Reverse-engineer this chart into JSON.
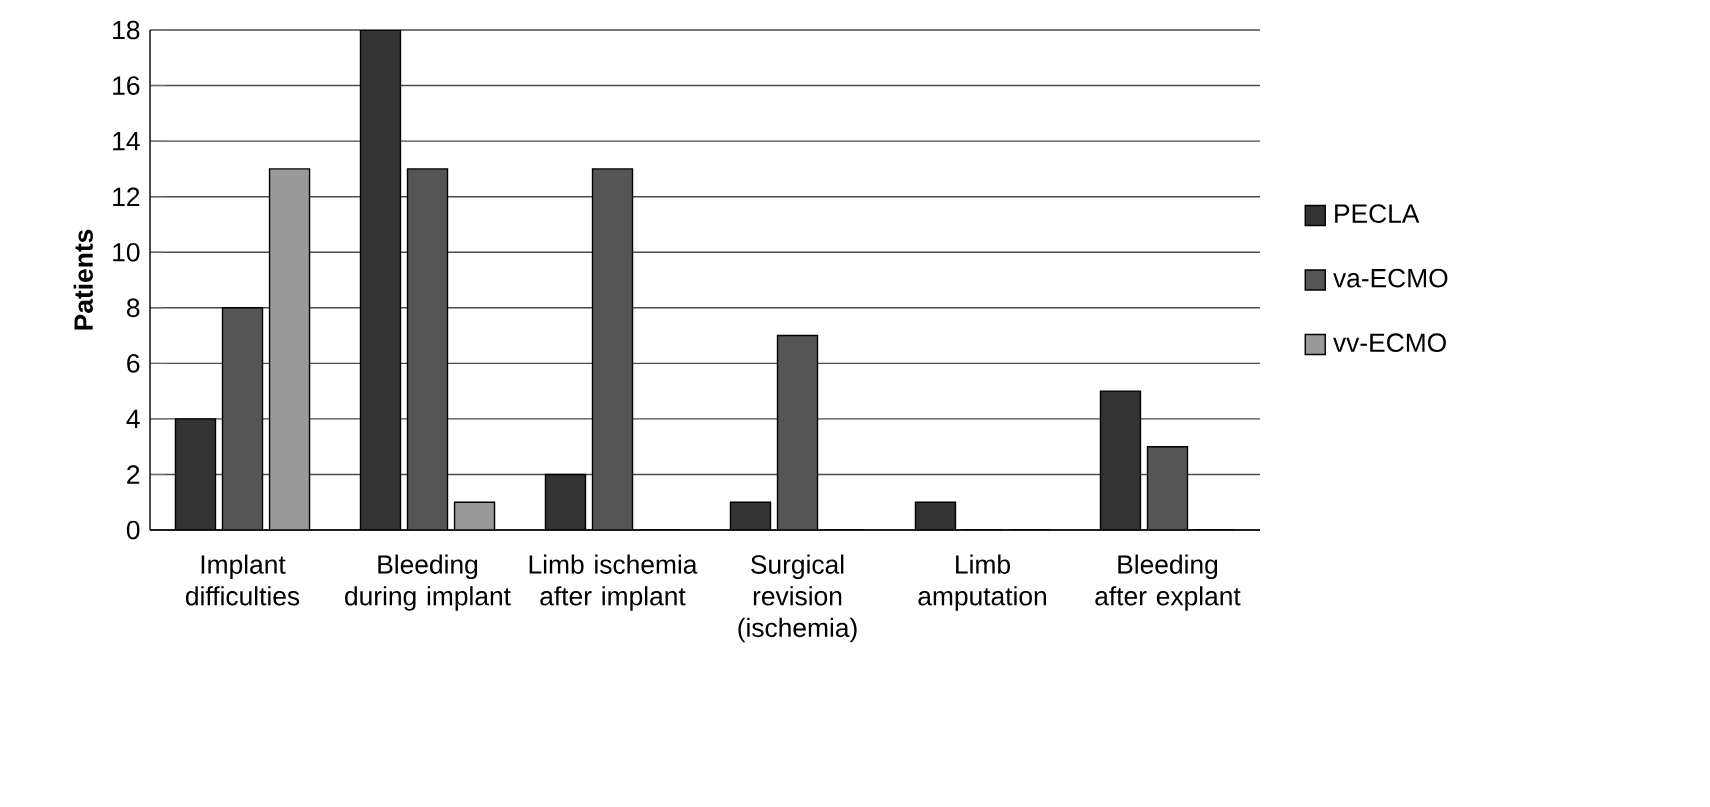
{
  "chart_data": {
    "type": "bar",
    "ylabel": "Patients",
    "categories": [
      "Implant difficulties",
      "Bleeding during implant",
      "Limb ischemia after implant",
      "Surgical revision (ischemia)",
      "Limb amputation",
      "Bleeding after explant"
    ],
    "series": [
      {
        "name": "PECLA",
        "color": "#333333",
        "values": [
          4,
          18,
          2,
          1,
          1,
          5
        ]
      },
      {
        "name": "va-ECMO",
        "color": "#555555",
        "values": [
          8,
          13,
          13,
          7,
          0,
          3
        ]
      },
      {
        "name": "vv-ECMO",
        "color": "#999999",
        "values": [
          13,
          1,
          0,
          0,
          0,
          0
        ]
      }
    ],
    "ylim": [
      0,
      18
    ],
    "yticks": [
      0,
      2,
      4,
      6,
      8,
      10,
      12,
      14,
      16,
      18
    ],
    "grid": "y",
    "legend": "right"
  }
}
